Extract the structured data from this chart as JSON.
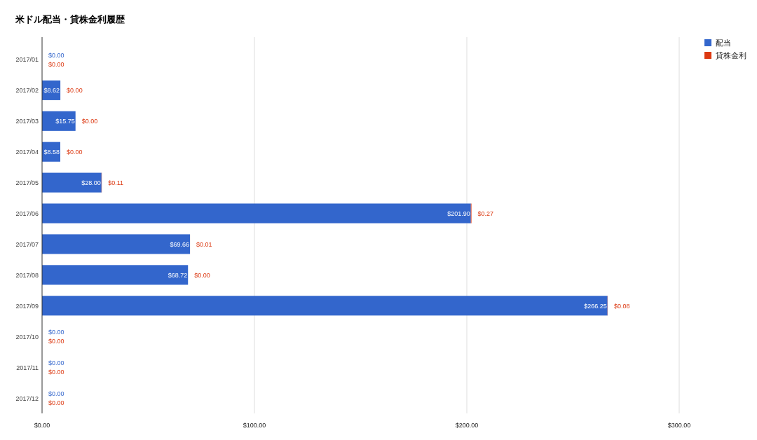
{
  "chart_data": {
    "type": "bar",
    "orientation": "horizontal",
    "stacked": true,
    "title": "米ドル配当・貸株金利履歴",
    "categories": [
      "2017/01",
      "2017/02",
      "2017/03",
      "2017/04",
      "2017/05",
      "2017/06",
      "2017/07",
      "2017/08",
      "2017/09",
      "2017/10",
      "2017/11",
      "2017/12"
    ],
    "series": [
      {
        "name": "配当",
        "color": "#3366cc",
        "values": [
          0,
          8.62,
          15.75,
          8.58,
          28.0,
          201.9,
          69.66,
          68.72,
          266.25,
          0,
          0,
          0
        ],
        "value_labels": [
          "$0.00",
          "$8.62",
          "$15.75",
          "$8.58",
          "$28.00",
          "$201.90",
          "$69.66",
          "$68.72",
          "$266.25",
          "$0.00",
          "$0.00",
          "$0.00"
        ]
      },
      {
        "name": "貸株金利",
        "color": "#dc3912",
        "values": [
          0,
          0,
          0,
          0,
          0.11,
          0.27,
          0.01,
          0,
          0.08,
          0,
          0,
          0
        ],
        "value_labels": [
          "$0.00",
          "$0.00",
          "$0.00",
          "$0.00",
          "$0.11",
          "$0.27",
          "$0.01",
          "$0.00",
          "$0.08",
          "$0.00",
          "$0.00",
          "$0.00"
        ]
      }
    ],
    "xlim": [
      0,
      300
    ],
    "xticks": [
      {
        "value": 0,
        "label": "$0.00"
      },
      {
        "value": 100,
        "label": "$100.00"
      },
      {
        "value": 200,
        "label": "$200.00"
      },
      {
        "value": 300,
        "label": "$300.00"
      }
    ],
    "grid": "x",
    "legend": "top right"
  }
}
